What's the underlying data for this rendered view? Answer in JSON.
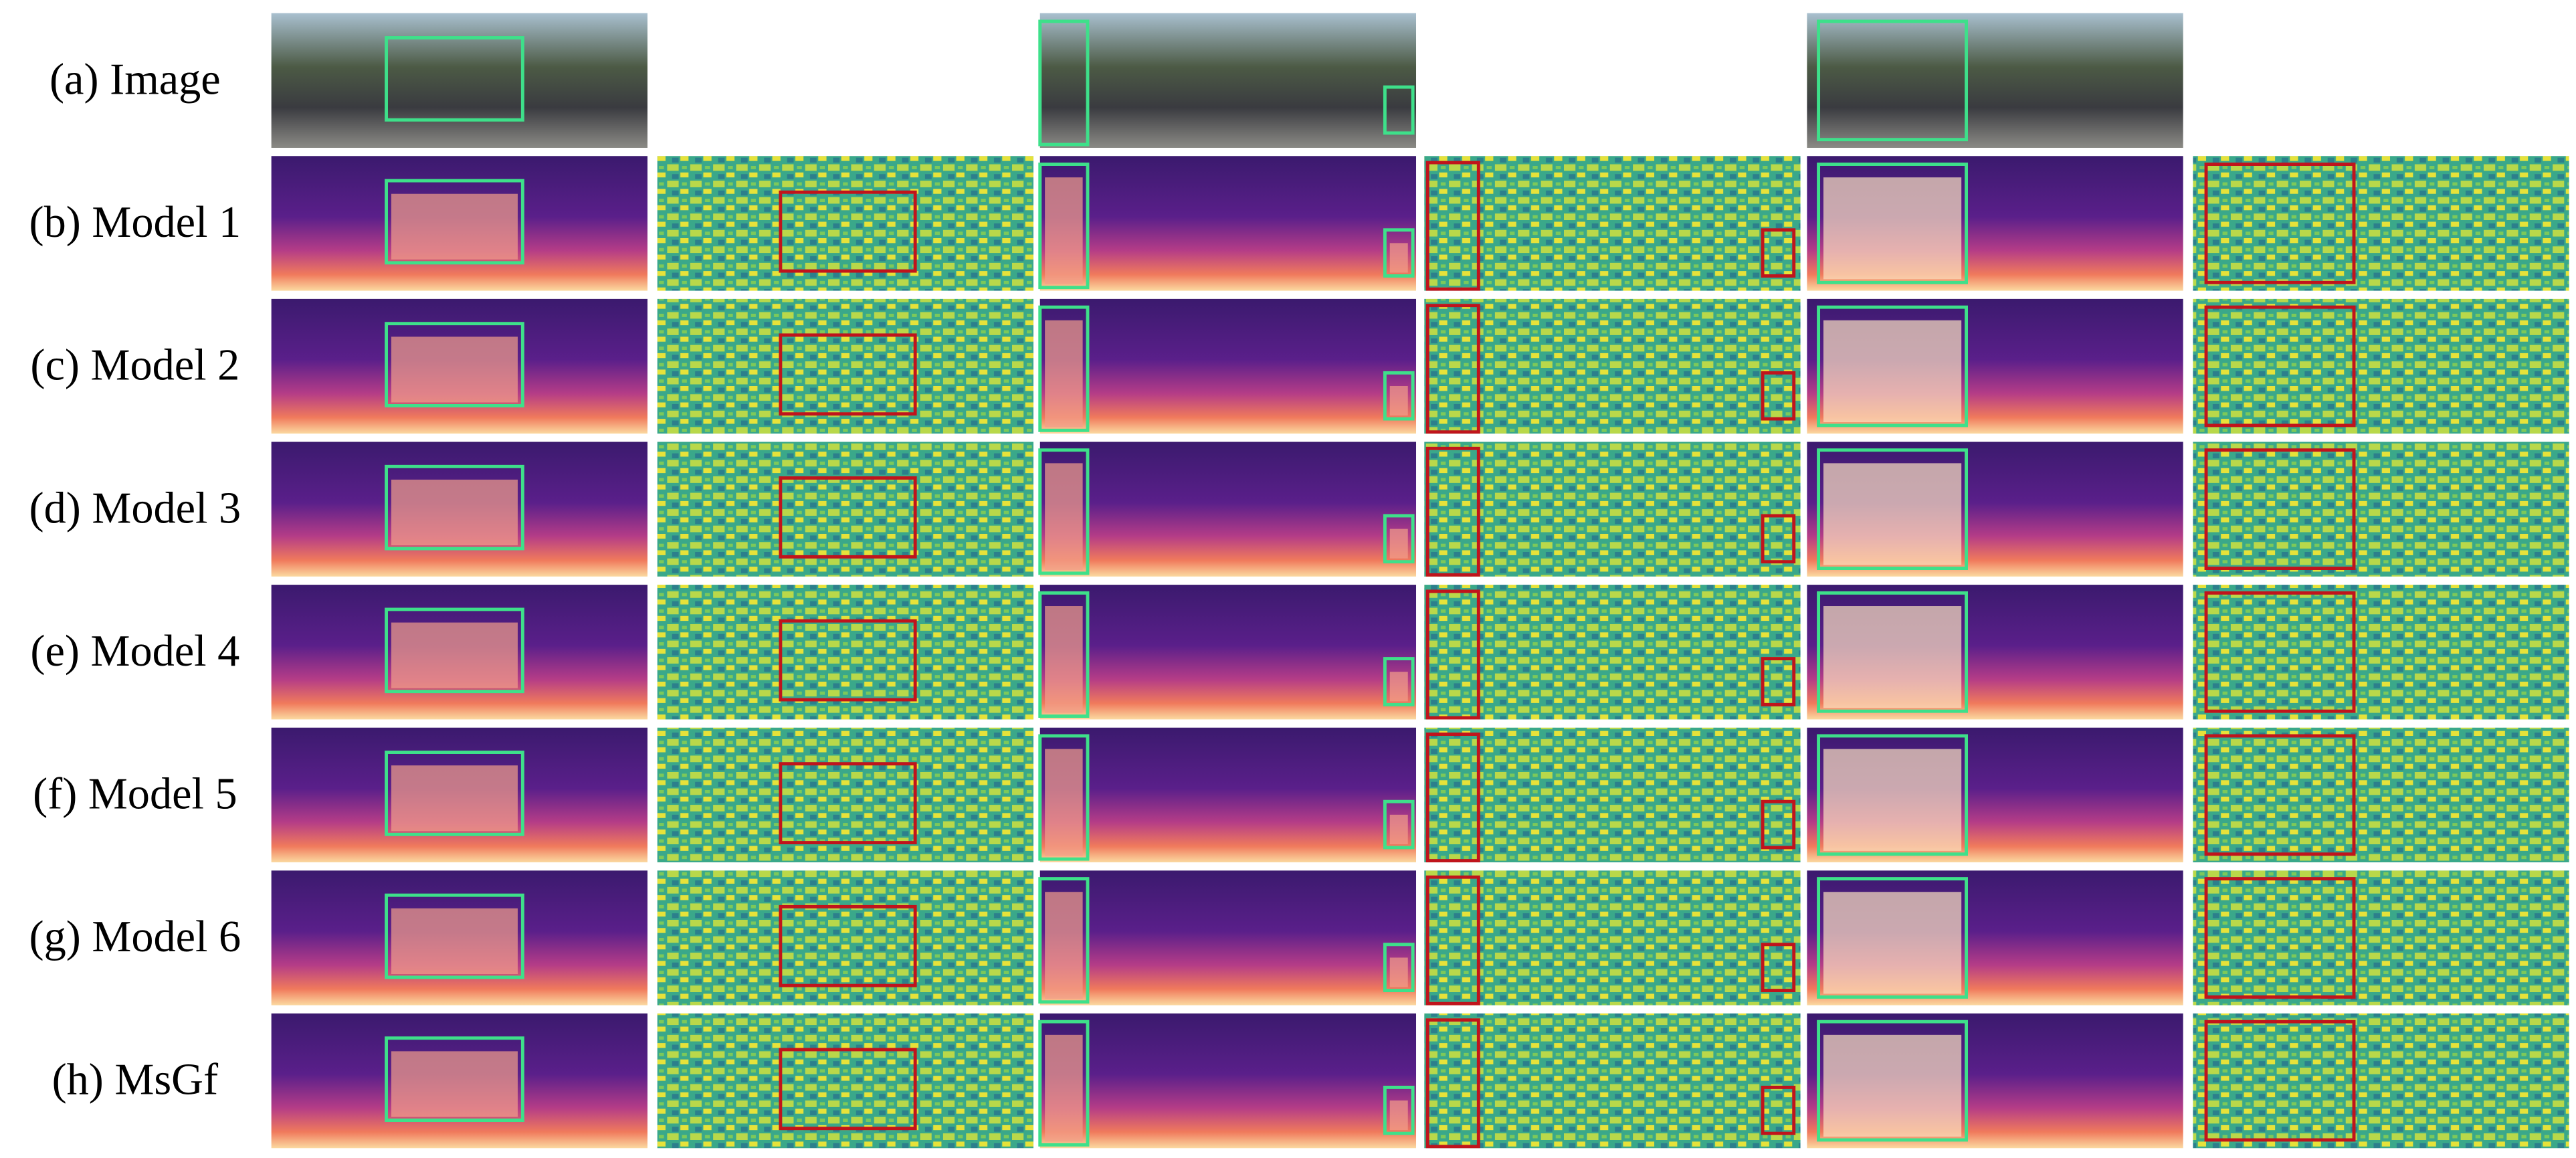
{
  "rows": [
    {
      "label": "(a) Image"
    },
    {
      "label": "(b) Model 1"
    },
    {
      "label": "(c) Model 2"
    },
    {
      "label": "(d) Model 3"
    },
    {
      "label": "(e) Model 4"
    },
    {
      "label": "(f) Model 5"
    },
    {
      "label": "(g) Model 6"
    },
    {
      "label": "(h) MsGf"
    }
  ]
}
